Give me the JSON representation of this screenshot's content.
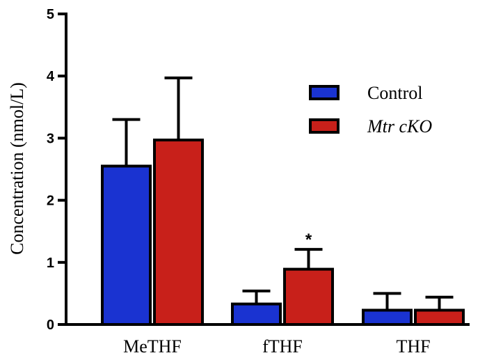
{
  "chart_data": {
    "type": "bar",
    "ylabel": "Concentration (nmol/L)",
    "xlabel": "",
    "ylim": [
      0,
      5
    ],
    "yticks": [
      0,
      1,
      2,
      3,
      4,
      5
    ],
    "grid": false,
    "legend_position": "top-right",
    "categories": [
      "MeTHF",
      "fTHF",
      "THF"
    ],
    "series": [
      {
        "name": "Control",
        "italic": false,
        "color": "#1a33d1",
        "values": [
          2.55,
          0.33,
          0.23
        ],
        "error": [
          0.75,
          0.21,
          0.27
        ]
      },
      {
        "name": "Mtr cKO",
        "italic": true,
        "color": "#c8201a",
        "values": [
          2.97,
          0.89,
          0.23
        ],
        "error": [
          1.0,
          0.32,
          0.21
        ]
      }
    ],
    "annotations": [
      {
        "category": "fTHF",
        "series": "Mtr cKO",
        "text": "*"
      }
    ]
  }
}
